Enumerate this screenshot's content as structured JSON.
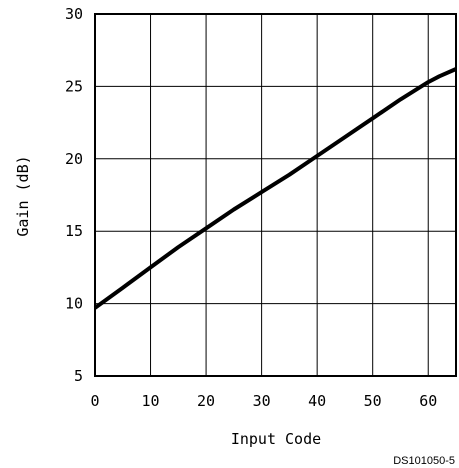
{
  "chart_data": {
    "type": "line",
    "title": "",
    "xlabel": "Input Code",
    "ylabel": "Gain (dB)",
    "xlim": [
      0,
      65
    ],
    "ylim": [
      5,
      30
    ],
    "xticks": [
      0,
      10,
      20,
      30,
      40,
      50,
      60
    ],
    "yticks": [
      5,
      10,
      15,
      20,
      25,
      30
    ],
    "grid": true,
    "legend": "none",
    "series": [
      {
        "x": [
          0,
          5,
          10,
          15,
          20,
          25,
          30,
          35,
          40,
          45,
          50,
          55,
          60,
          62,
          65
        ],
        "y": [
          9.7,
          11.1,
          12.5,
          13.9,
          15.2,
          16.5,
          17.7,
          18.9,
          20.2,
          21.5,
          22.8,
          24.1,
          25.3,
          25.7,
          26.2
        ],
        "color": "#000000"
      }
    ],
    "figure_id": "DS101050-5"
  }
}
